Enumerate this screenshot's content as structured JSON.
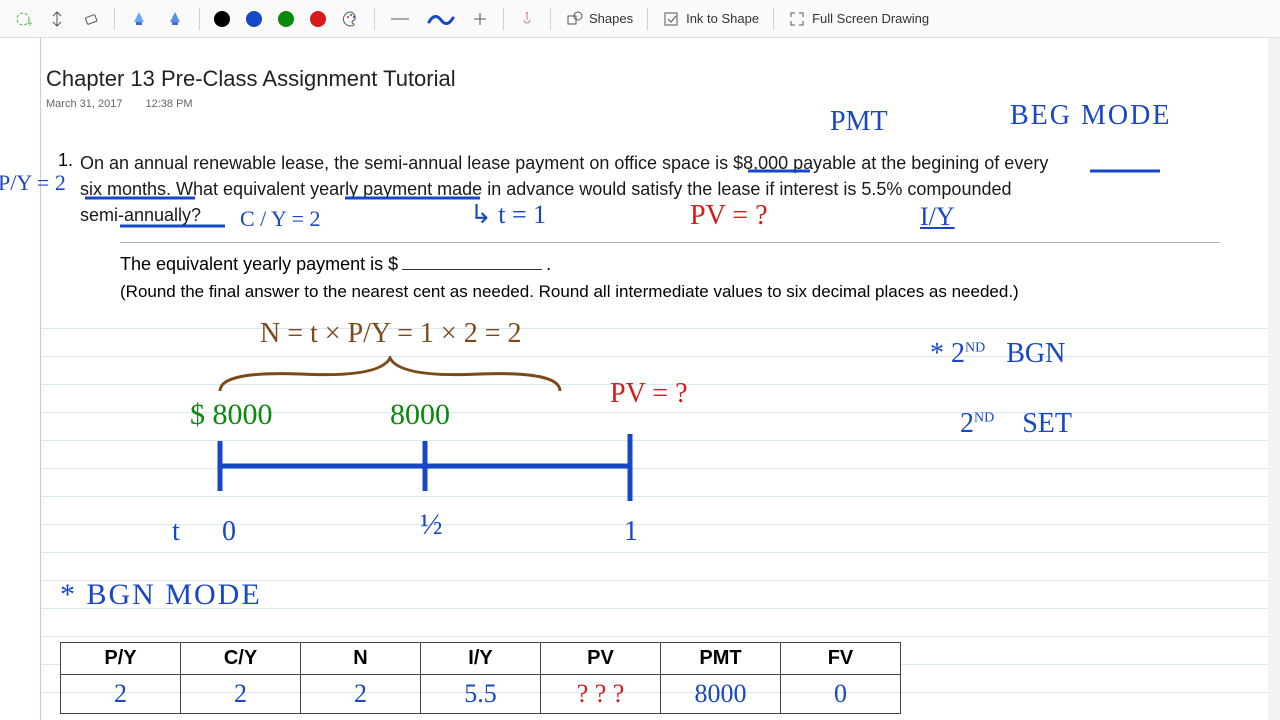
{
  "toolbar": {
    "lasso_label": "",
    "pan_label": "",
    "eraser_label": "",
    "shapes_label": "Shapes",
    "ink2shape_label": "Ink to Shape",
    "fullscreen_label": "Full Screen Drawing",
    "pen_colors": [
      "#000000",
      "#1746c7",
      "#0a8a0a",
      "#d91a1a"
    ],
    "highlighter_colors": [
      "#6aa8ff",
      "#5b8fe0"
    ],
    "palette_icon": "palette"
  },
  "page": {
    "title": "Chapter 13 Pre-Class Assignment Tutorial",
    "date": "March 31, 2017",
    "time": "12:38 PM",
    "problem_number": "1.",
    "problem_text_a": "On an annual renewable lease, the semi-annual lease payment on office space is $8,000 payable at the begining of every",
    "problem_text_b": "six months. What equivalent yearly payment made in advance would satisfy the lease if interest is 5.5% compounded",
    "problem_text_c": "semi-annually?",
    "answer_prompt": "The equivalent yearly payment is $",
    "answer_end": ".",
    "round_note": "(Round the final answer to the nearest cent as needed. Round all intermediate values to six decimal places as needed.)"
  },
  "annotations": {
    "pmt": "PMT",
    "beg_mode": "BEG  MODE",
    "py2": "P/Y = 2",
    "cy2": "C / Y = 2",
    "t1": "↳  t = 1",
    "pvq": "PV = ?",
    "iy": "I/Y",
    "n_eq": "N = t × P/Y  =  1 × 2  =  2",
    "amt1": "$ 8000",
    "amt2": "8000",
    "pvq2": "PV = ?",
    "t_lbl": "t",
    "t0": "0",
    "thalf": "½",
    "t1_tick": "1",
    "bgn_mode": "* BGN   MODE",
    "second_bgn": "*  2",
    "nd": "ND",
    "bgn": "BGN",
    "second_set_a": "2",
    "nd2": "ND",
    "set": "SET"
  },
  "table": {
    "headers": [
      "P/Y",
      "C/Y",
      "N",
      "I/Y",
      "PV",
      "PMT",
      "FV"
    ],
    "row": [
      {
        "v": "2",
        "c": "blue"
      },
      {
        "v": "2",
        "c": "blue"
      },
      {
        "v": "2",
        "c": "blue"
      },
      {
        "v": "5.5",
        "c": "blue"
      },
      {
        "v": "? ? ?",
        "c": "red"
      },
      {
        "v": "8000",
        "c": "blue"
      },
      {
        "v": "0",
        "c": "blue"
      }
    ]
  },
  "ruled_lines": {
    "start": 290,
    "step": 28,
    "count": 14
  },
  "colors": {
    "blue": "#1746c7",
    "red": "#d91a1a",
    "green": "#0a8a0a",
    "brown": "#7a4a1a",
    "rule": "#d9e9f2",
    "margin": "#f4b9b9"
  }
}
